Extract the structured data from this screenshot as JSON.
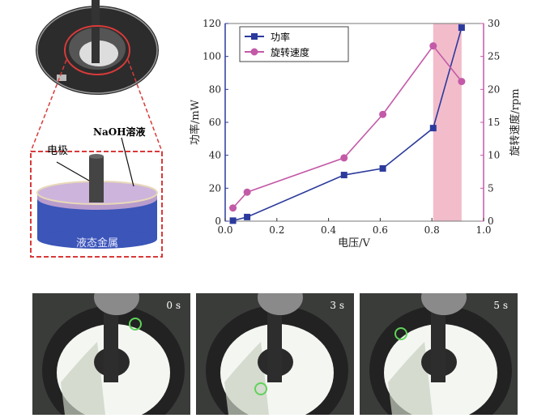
{
  "diagram": {
    "solution_label": "NaOH溶液",
    "electrode_label": "电极",
    "metal_label": "液态金属",
    "colors": {
      "zoom_box": "#d93a3a",
      "metal": "#3b55b8",
      "solution": "#b89ccc"
    }
  },
  "chart_data": {
    "type": "line",
    "xlabel": "电压/V",
    "ylabel": "功率/mW",
    "ylabel_right": "旋转速度/rpm",
    "xlim": [
      0.0,
      1.0
    ],
    "ylim": [
      0,
      120
    ],
    "ylim_right": [
      0,
      30
    ],
    "xticks": [
      "0.0",
      "0.2",
      "0.4",
      "0.6",
      "0.8",
      "1.0"
    ],
    "yticks": [
      "0",
      "20",
      "40",
      "60",
      "80",
      "100",
      "120"
    ],
    "yticks_right": [
      "0",
      "5",
      "10",
      "15",
      "20",
      "25",
      "30"
    ],
    "legend_position": "top-left",
    "highlight_band": {
      "x_range": [
        0.805,
        0.915
      ],
      "color": "#f2bccb"
    },
    "series": [
      {
        "name": "功率",
        "axis": "left",
        "marker": "square",
        "color": "#2b3a9c",
        "x": [
          0.03,
          0.085,
          0.46,
          0.61,
          0.805,
          0.915
        ],
        "y": [
          0.3,
          2.5,
          28,
          32,
          56.5,
          117.5
        ]
      },
      {
        "name": "旋转速度",
        "axis": "right",
        "marker": "circle",
        "color": "#c35aa8",
        "x": [
          0.03,
          0.085,
          0.46,
          0.61,
          0.805,
          0.915
        ],
        "y": [
          2.0,
          4.4,
          9.6,
          16.2,
          26.6,
          21.2
        ]
      }
    ]
  },
  "frames": [
    {
      "time": "0 s",
      "marker_color": "#5fd35a"
    },
    {
      "time": "3 s",
      "marker_color": "#5fd35a"
    },
    {
      "time": "5 s",
      "marker_color": "#5fd35a"
    }
  ]
}
